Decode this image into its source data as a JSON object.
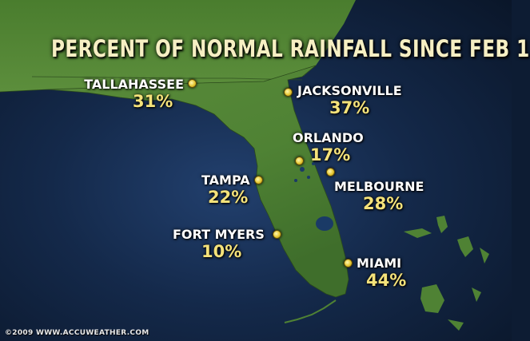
{
  "title": "PERCENT OF NORMAL RAINFALL SINCE FEB 1",
  "cities": [
    {
      "id": "tallahassee",
      "name": "TALLAHASSEE",
      "value": "31%"
    },
    {
      "id": "jacksonville",
      "name": "JACKSONVILLE",
      "value": "37%"
    },
    {
      "id": "orlando",
      "name": "ORLANDO",
      "value": "17%"
    },
    {
      "id": "tampa",
      "name": "TAMPA",
      "value": "22%"
    },
    {
      "id": "melbourne",
      "name": "MELBOURNE",
      "value": "28%"
    },
    {
      "id": "fort-myers",
      "name": "FORT MYERS",
      "value": "10%"
    },
    {
      "id": "miami",
      "name": "MIAMI",
      "value": "44%"
    }
  ],
  "copyright": "©2009 WWW.ACCUWEATHER.COM",
  "colors": {
    "land": "#5a8a3c",
    "water": "#1b3560",
    "label_value": "#f4e27a",
    "marker": "#e5c530"
  }
}
